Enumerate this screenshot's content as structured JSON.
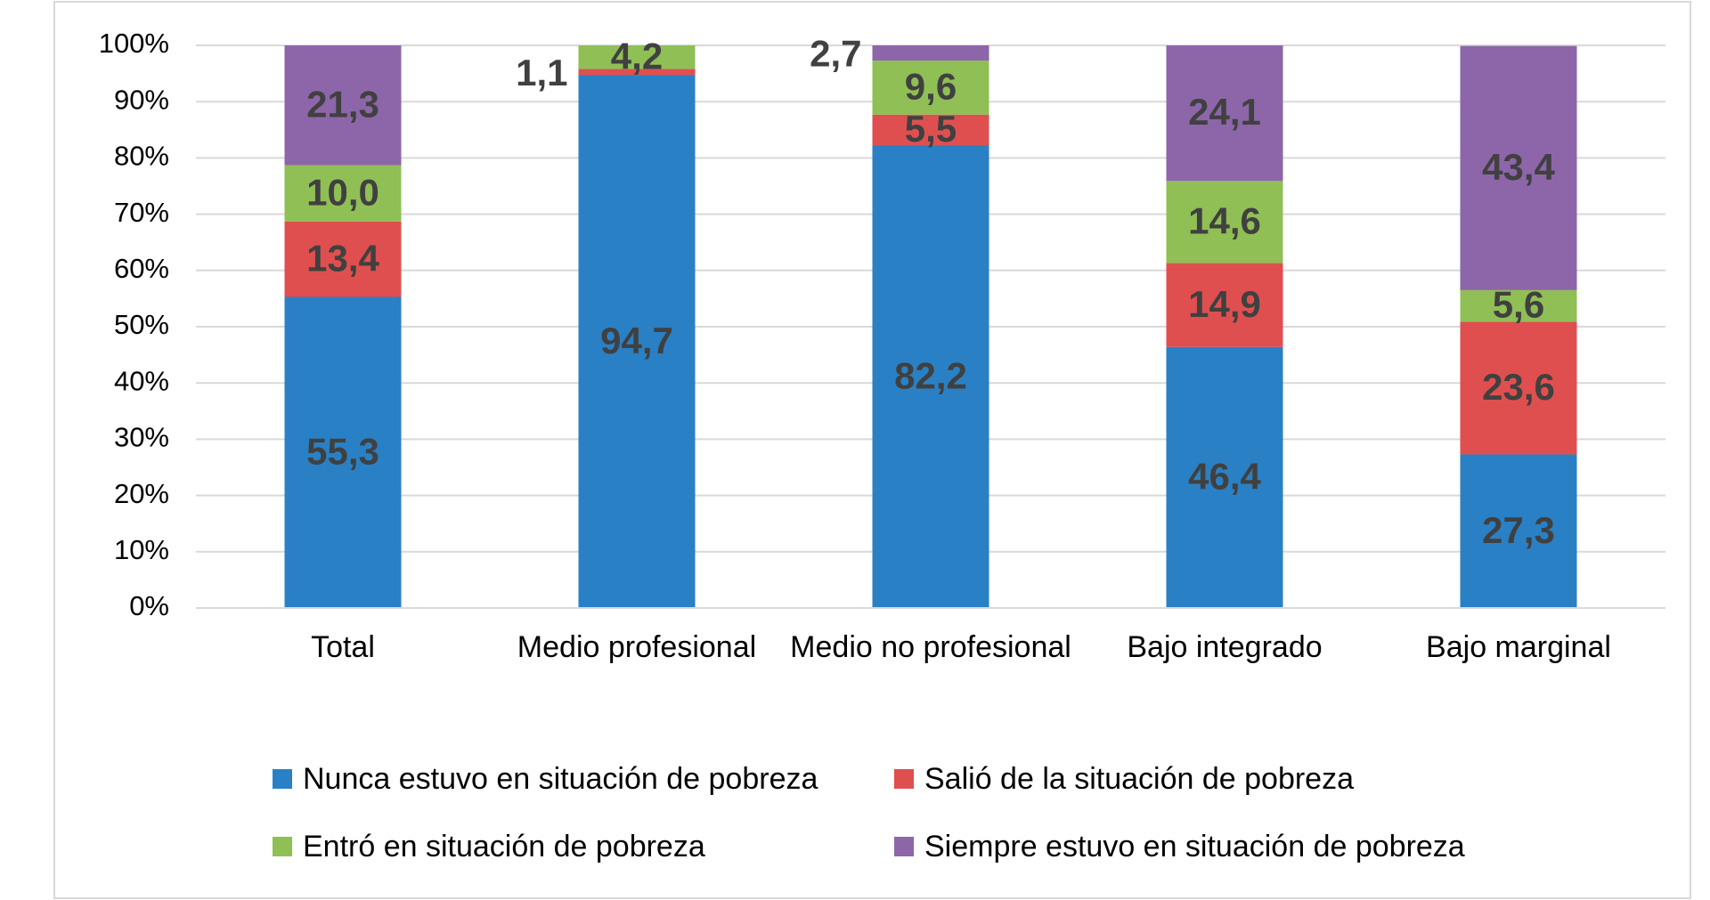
{
  "chart_data": {
    "type": "stacked_bar",
    "categories": [
      "Total",
      "Medio profesional",
      "Medio no profesional",
      "Bajo integrado",
      "Bajo marginal"
    ],
    "series": [
      {
        "name": "Nunca estuvo en situación de pobreza",
        "color": "#2a80c4",
        "values": [
          55.3,
          94.7,
          82.2,
          46.4,
          27.3
        ],
        "value_labels": [
          "55,3",
          "94,7",
          "82,2",
          "46,4",
          "27,3"
        ]
      },
      {
        "name": "Salió de la situación de pobreza",
        "color": "#e04f4f",
        "values": [
          13.4,
          1.1,
          5.5,
          14.9,
          23.6
        ],
        "value_labels": [
          "13,4",
          "1,1",
          "5,5",
          "14,9",
          "23,6"
        ]
      },
      {
        "name": "Entró en situación de pobreza",
        "color": "#8fbf55",
        "values": [
          10.0,
          4.2,
          9.6,
          14.6,
          5.6
        ],
        "value_labels": [
          "10,0",
          "4,2",
          "9,6",
          "14,6",
          "5,6"
        ]
      },
      {
        "name": "Siempre estuvo en situación de pobreza",
        "color": "#8d66a9",
        "values": [
          21.3,
          null,
          2.7,
          24.1,
          43.4
        ],
        "value_labels": [
          "21,3",
          null,
          "2,7",
          "24,1",
          "43,4"
        ]
      }
    ],
    "ylim": [
      0,
      100
    ],
    "yticks": [
      {
        "value": 0,
        "label": "0%"
      },
      {
        "value": 10,
        "label": "10%"
      },
      {
        "value": 20,
        "label": "20%"
      },
      {
        "value": 30,
        "label": "30%"
      },
      {
        "value": 40,
        "label": "40%"
      },
      {
        "value": 50,
        "label": "50%"
      },
      {
        "value": 60,
        "label": "60%"
      },
      {
        "value": 70,
        "label": "70%"
      },
      {
        "value": 80,
        "label": "80%"
      },
      {
        "value": 90,
        "label": "90%"
      },
      {
        "value": 100,
        "label": "100%"
      }
    ],
    "grid": true
  }
}
